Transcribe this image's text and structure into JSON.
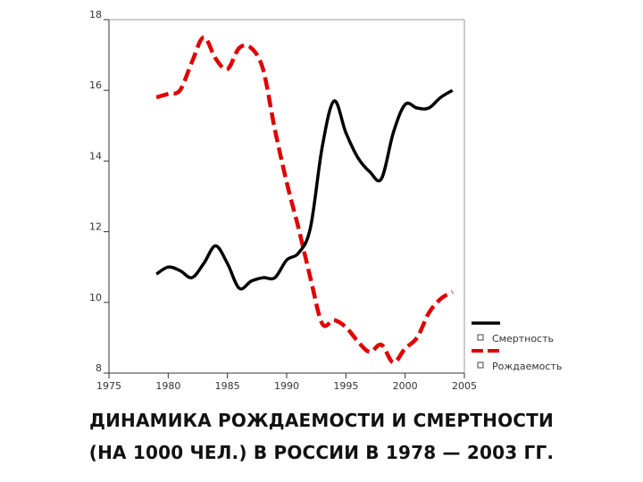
{
  "caption": {
    "line1": "ДИНАМИКА РОЖДАЕМОСТИ И СМЕРТНОСТИ",
    "line2": "(НА 1000 ЧЕЛ.) В РОССИИ В 1978 — 2003 ГГ."
  },
  "chart_data": {
    "type": "line",
    "title": "",
    "xlabel": "",
    "ylabel": "",
    "xlim": [
      1975,
      2005
    ],
    "ylim": [
      8,
      18
    ],
    "x_ticks": [
      "1975",
      "1980",
      "1985",
      "1990",
      "1995",
      "2000",
      "2005"
    ],
    "y_ticks": [
      "8",
      "10",
      "12",
      "14",
      "16",
      "18"
    ],
    "grid": false,
    "legend": "bottom-right",
    "series": [
      {
        "name": "Смертность",
        "color": "#000000",
        "style": "solid",
        "x": [
          1979,
          1980,
          1981,
          1982,
          1983,
          1984,
          1985,
          1986,
          1987,
          1988,
          1989,
          1990,
          1991,
          1992,
          1993,
          1994,
          1995,
          1996,
          1997,
          1998,
          1999,
          2000,
          2001,
          2002,
          2003,
          2004
        ],
        "values": [
          10.8,
          11.0,
          10.9,
          10.7,
          11.1,
          11.6,
          11.1,
          10.4,
          10.6,
          10.7,
          10.7,
          11.2,
          11.4,
          12.1,
          14.4,
          15.7,
          14.8,
          14.1,
          13.7,
          13.5,
          14.8,
          15.6,
          15.5,
          15.5,
          15.8,
          16.0
        ]
      },
      {
        "name": "Рождаемость",
        "color": "#e00000",
        "style": "dashed",
        "x": [
          1979,
          1980,
          1981,
          1982,
          1983,
          1984,
          1985,
          1986,
          1987,
          1988,
          1989,
          1990,
          1991,
          1992,
          1993,
          1994,
          1995,
          1996,
          1997,
          1998,
          1999,
          2000,
          2001,
          2002,
          2003,
          2004
        ],
        "values": [
          15.8,
          15.9,
          16.0,
          16.8,
          17.5,
          16.9,
          16.6,
          17.2,
          17.2,
          16.6,
          14.9,
          13.4,
          12.1,
          10.7,
          9.4,
          9.5,
          9.3,
          8.9,
          8.6,
          8.8,
          8.3,
          8.7,
          9.0,
          9.7,
          10.1,
          10.3
        ]
      }
    ]
  }
}
